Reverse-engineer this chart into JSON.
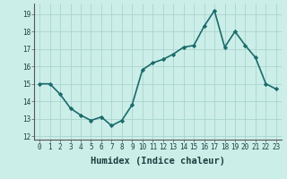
{
  "x": [
    0,
    1,
    2,
    3,
    4,
    5,
    6,
    7,
    8,
    9,
    10,
    11,
    12,
    13,
    14,
    15,
    16,
    17,
    18,
    19,
    20,
    21,
    22,
    23
  ],
  "y": [
    15.0,
    15.0,
    14.4,
    13.6,
    13.2,
    12.9,
    13.1,
    12.6,
    12.9,
    13.8,
    15.8,
    16.2,
    16.4,
    16.7,
    17.1,
    17.2,
    18.3,
    19.2,
    17.1,
    18.0,
    17.2,
    16.5,
    15.0,
    14.7
  ],
  "line_color": "#1a6b6b",
  "marker": "D",
  "marker_size": 2.2,
  "bg_color": "#cceee8",
  "grid_color": "#aad4ce",
  "xlabel": "Humidex (Indice chaleur)",
  "ylim": [
    11.8,
    19.6
  ],
  "xlim": [
    -0.5,
    23.5
  ],
  "yticks": [
    12,
    13,
    14,
    15,
    16,
    17,
    18,
    19
  ],
  "xticks": [
    0,
    1,
    2,
    3,
    4,
    5,
    6,
    7,
    8,
    9,
    10,
    11,
    12,
    13,
    14,
    15,
    16,
    17,
    18,
    19,
    20,
    21,
    22,
    23
  ],
  "tick_fontsize": 5.5,
  "xlabel_fontsize": 7.5,
  "line_width": 1.2
}
